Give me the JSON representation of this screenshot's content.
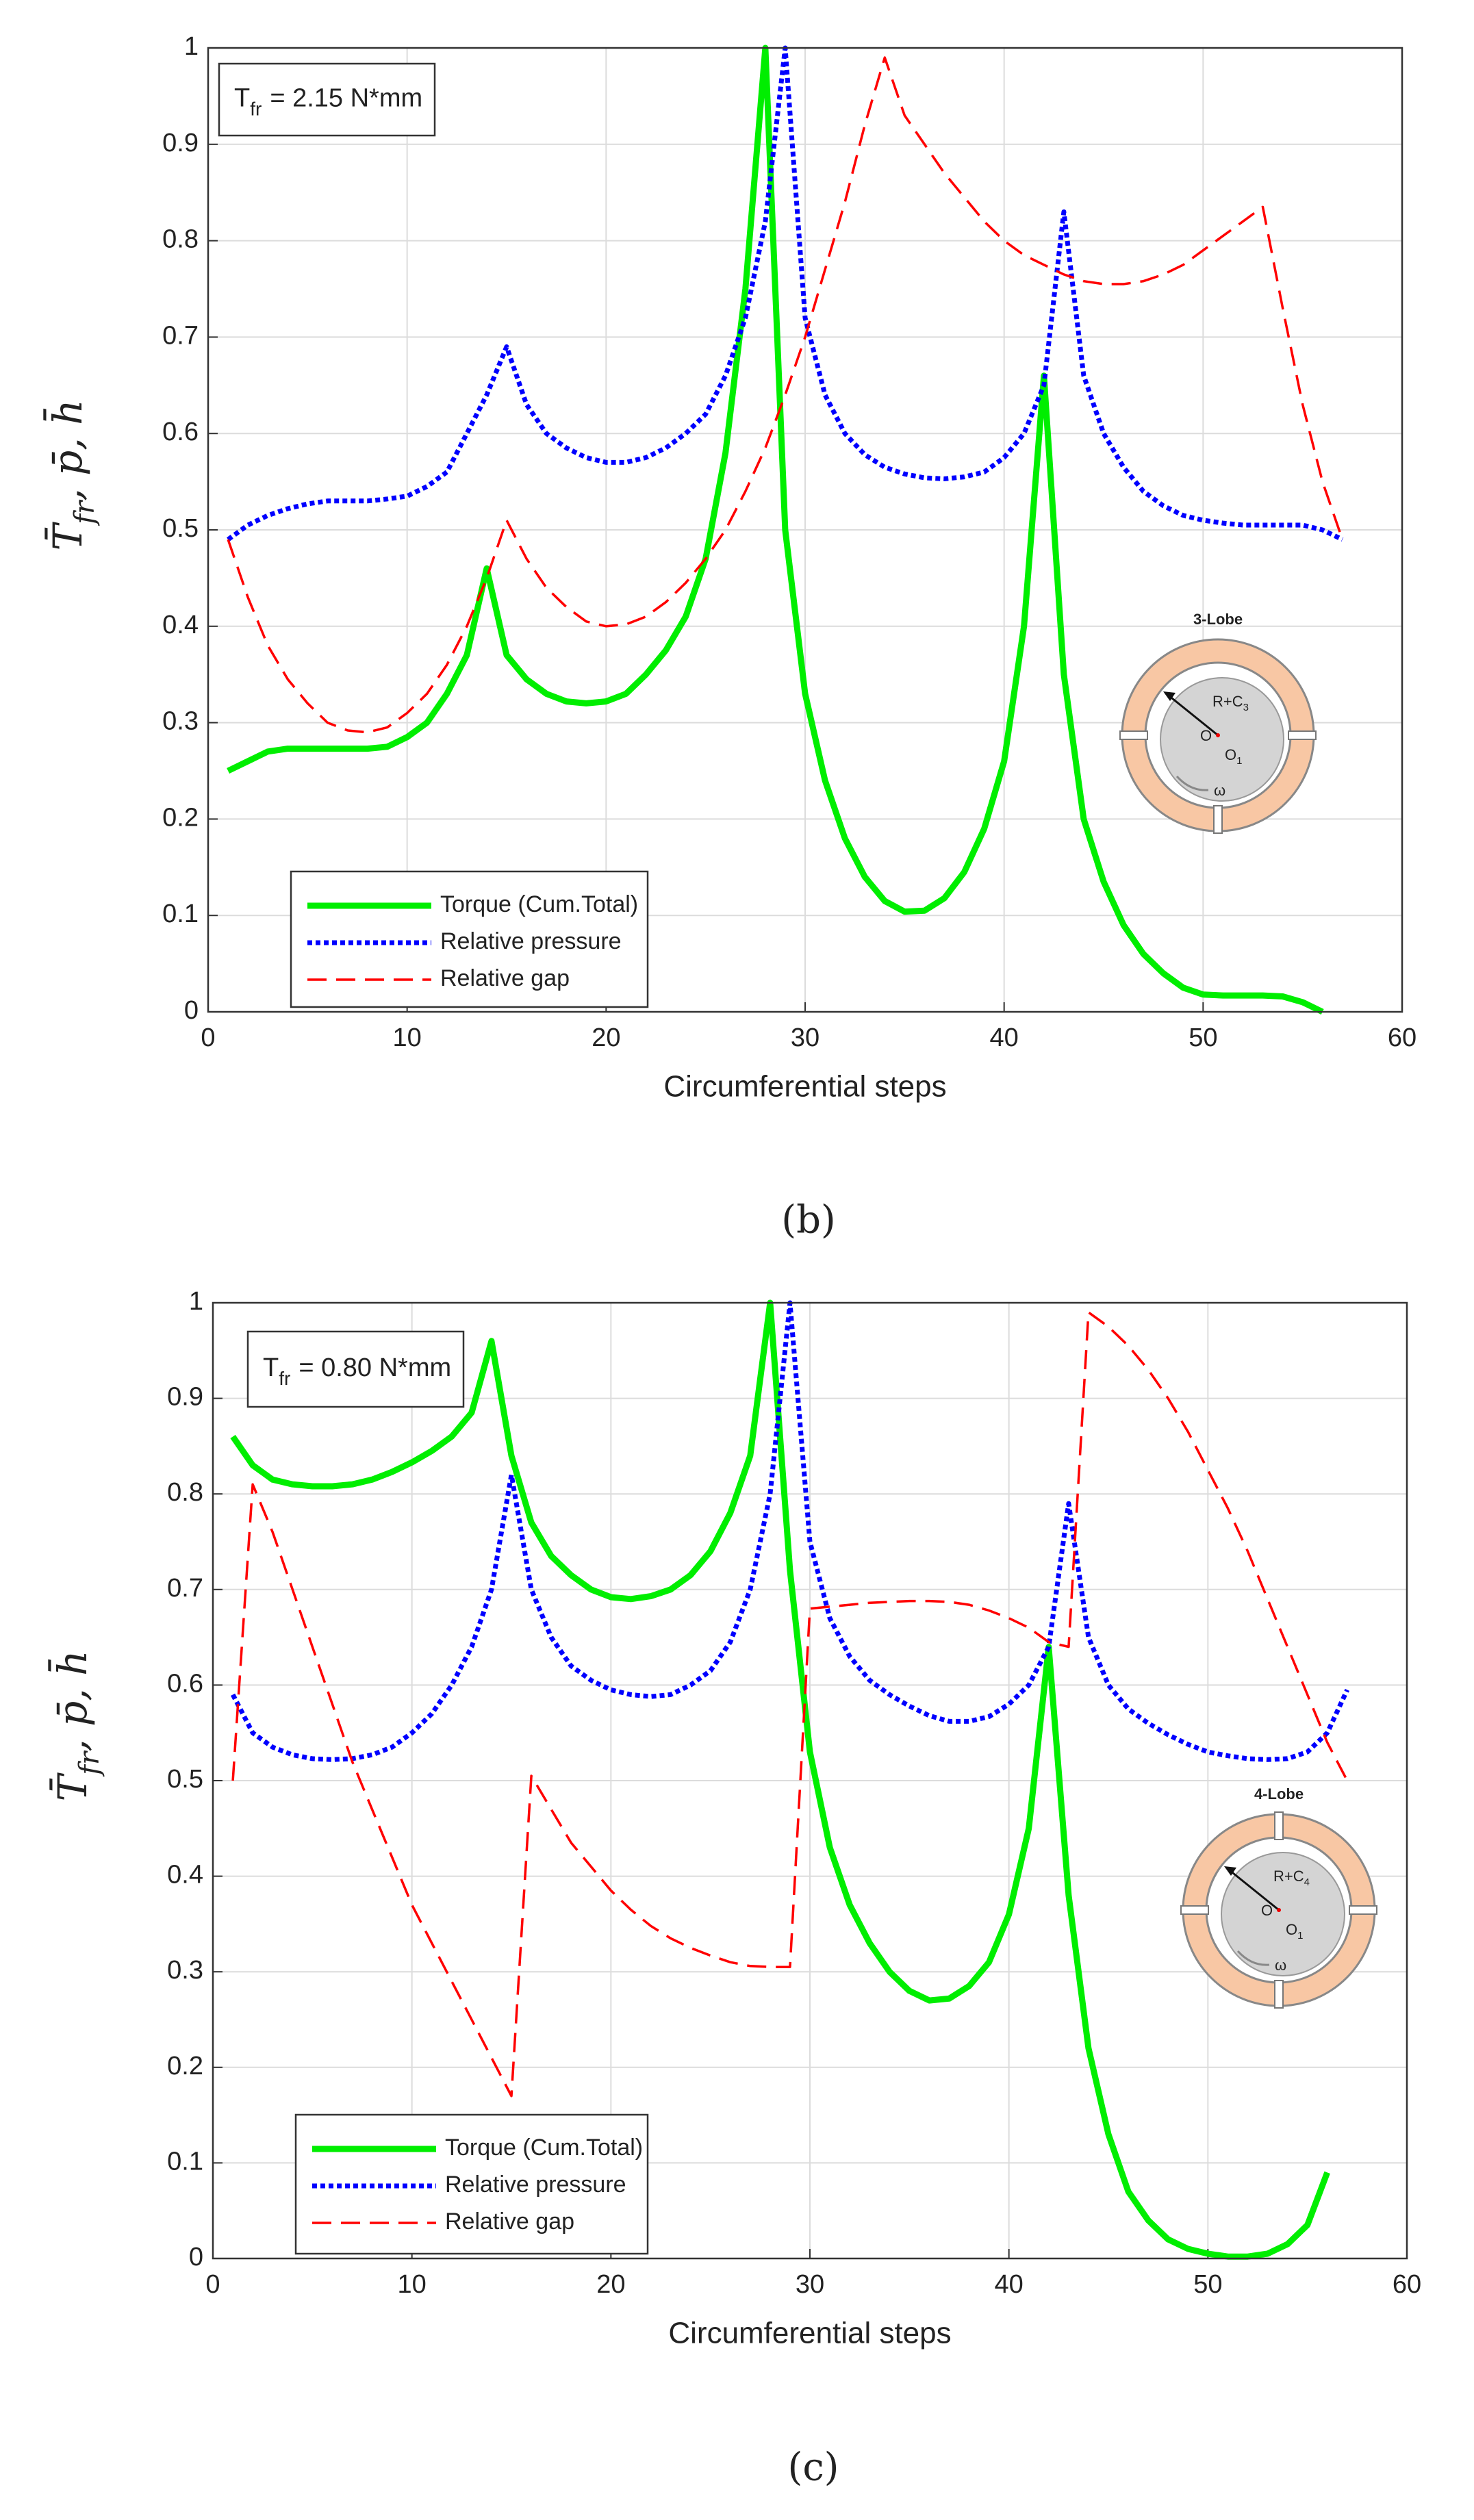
{
  "chart_data": [
    {
      "type": "line",
      "caption": "(b)",
      "xlabel": "Circumferential steps",
      "ylabel": [
        {
          "text": "T̄"
        },
        {
          "sub": "fr"
        },
        {
          "text": ", p̄, h̄"
        }
      ],
      "annotation": {
        "symbol": "T",
        "sub": "fr",
        "text": "= 2.15  N*mm"
      },
      "inset": {
        "title": "3-Lobe",
        "lobes": 3,
        "radius_label": "R+C",
        "radius_sub": "3",
        "center": "O",
        "offset": "O",
        "offset_sub": "1",
        "rotation": "ω"
      },
      "x": [
        1,
        2,
        3,
        4,
        5,
        6,
        7,
        8,
        9,
        10,
        11,
        12,
        13,
        14,
        15,
        16,
        17,
        18,
        19,
        20,
        21,
        22,
        23,
        24,
        25,
        26,
        27,
        28,
        29,
        30,
        31,
        32,
        33,
        34,
        35,
        36,
        37,
        38,
        39,
        40,
        41,
        42,
        43,
        44,
        45,
        46,
        47,
        48,
        49,
        50,
        51,
        52,
        53,
        54,
        55,
        56,
        57
      ],
      "series": [
        {
          "name": "Torque (Cum.Total)",
          "color": "#00ee00",
          "style": "solid",
          "values": [
            0.25,
            0.26,
            0.27,
            0.273,
            0.273,
            0.273,
            0.273,
            0.273,
            0.275,
            0.285,
            0.3,
            0.33,
            0.37,
            0.46,
            0.37,
            0.345,
            0.33,
            0.322,
            0.32,
            0.322,
            0.33,
            0.35,
            0.375,
            0.41,
            0.47,
            0.58,
            0.75,
            1.0,
            0.5,
            0.33,
            0.24,
            0.18,
            0.14,
            0.115,
            0.104,
            0.105,
            0.118,
            0.145,
            0.19,
            0.26,
            0.4,
            0.66,
            0.35,
            0.2,
            0.135,
            0.09,
            0.06,
            0.04,
            0.025,
            0.018,
            0.017,
            0.017,
            0.017,
            0.016,
            0.01,
            0,
            null
          ]
        },
        {
          "name": "Relative pressure",
          "color": "#0000ff",
          "style": "dotted",
          "values": [
            0.49,
            0.505,
            0.515,
            0.522,
            0.527,
            0.53,
            0.53,
            0.53,
            0.532,
            0.535,
            0.545,
            0.56,
            0.6,
            0.64,
            0.69,
            0.63,
            0.6,
            0.585,
            0.575,
            0.57,
            0.57,
            0.575,
            0.585,
            0.6,
            0.62,
            0.66,
            0.72,
            0.82,
            1.0,
            0.72,
            0.64,
            0.6,
            0.578,
            0.565,
            0.558,
            0.554,
            0.553,
            0.555,
            0.56,
            0.575,
            0.6,
            0.65,
            0.83,
            0.66,
            0.6,
            0.565,
            0.54,
            0.525,
            0.515,
            0.51,
            0.507,
            0.505,
            0.505,
            0.505,
            0.505,
            0.5,
            0.49
          ]
        },
        {
          "name": "Relative gap",
          "color": "#ff0000",
          "style": "dashed",
          "values": [
            0.49,
            0.43,
            0.38,
            0.345,
            0.32,
            0.3,
            0.292,
            0.29,
            0.295,
            0.31,
            0.33,
            0.36,
            0.4,
            0.45,
            0.51,
            0.47,
            0.44,
            0.42,
            0.405,
            0.4,
            0.402,
            0.41,
            0.425,
            0.445,
            0.47,
            0.5,
            0.54,
            0.585,
            0.64,
            0.7,
            0.77,
            0.84,
            0.92,
            0.99,
            0.93,
            0.9,
            0.87,
            0.845,
            0.82,
            0.8,
            0.785,
            0.775,
            0.765,
            0.758,
            0.755,
            0.755,
            0.758,
            0.765,
            0.775,
            0.79,
            0.805,
            0.82,
            0.835,
            0.73,
            0.63,
            0.55,
            0.49
          ]
        }
      ],
      "xlim": [
        0,
        60
      ],
      "xticks": [
        0,
        10,
        20,
        30,
        40,
        50,
        60
      ],
      "ylim": [
        0,
        1
      ],
      "yticks": [
        0,
        0.1,
        0.2,
        0.3,
        0.4,
        0.5,
        0.6,
        0.7,
        0.8,
        0.9,
        1
      ],
      "grid": true,
      "legend": "lower left"
    },
    {
      "type": "line",
      "caption": "(c)",
      "xlabel": "Circumferential steps",
      "ylabel": [
        {
          "text": "T̄"
        },
        {
          "sub": "fr"
        },
        {
          "text": ", p̄, h̄"
        }
      ],
      "annotation": {
        "symbol": "T",
        "sub": "fr",
        "text": "= 0.80  N*mm"
      },
      "inset": {
        "title": "4-Lobe",
        "lobes": 4,
        "radius_label": "R+C",
        "radius_sub": "4",
        "center": "O",
        "offset": "O",
        "offset_sub": "1",
        "rotation": "ω"
      },
      "x": [
        1,
        2,
        3,
        4,
        5,
        6,
        7,
        8,
        9,
        10,
        11,
        12,
        13,
        14,
        15,
        16,
        17,
        18,
        19,
        20,
        21,
        22,
        23,
        24,
        25,
        26,
        27,
        28,
        29,
        30,
        31,
        32,
        33,
        34,
        35,
        36,
        37,
        38,
        39,
        40,
        41,
        42,
        43,
        44,
        45,
        46,
        47,
        48,
        49,
        50,
        51,
        52,
        53,
        54,
        55,
        56,
        57
      ],
      "series": [
        {
          "name": "Torque (Cum.Total)",
          "color": "#00ee00",
          "style": "solid",
          "values": [
            0.86,
            0.83,
            0.815,
            0.81,
            0.808,
            0.808,
            0.81,
            0.815,
            0.823,
            0.833,
            0.845,
            0.86,
            0.885,
            0.96,
            0.84,
            0.77,
            0.735,
            0.715,
            0.7,
            0.692,
            0.69,
            0.693,
            0.7,
            0.715,
            0.74,
            0.78,
            0.84,
            1.0,
            0.72,
            0.53,
            0.43,
            0.37,
            0.33,
            0.3,
            0.28,
            0.27,
            0.272,
            0.285,
            0.31,
            0.36,
            0.45,
            0.64,
            0.38,
            0.22,
            0.13,
            0.07,
            0.04,
            0.02,
            0.01,
            0.005,
            0.002,
            0.002,
            0.005,
            0.015,
            0.035,
            0.09,
            null
          ]
        },
        {
          "name": "Relative pressure",
          "color": "#0000ff",
          "style": "dotted",
          "values": [
            0.59,
            0.55,
            0.535,
            0.527,
            0.523,
            0.522,
            0.523,
            0.527,
            0.535,
            0.55,
            0.57,
            0.6,
            0.64,
            0.7,
            0.82,
            0.7,
            0.65,
            0.62,
            0.605,
            0.595,
            0.59,
            0.588,
            0.59,
            0.6,
            0.615,
            0.645,
            0.7,
            0.8,
            1.0,
            0.75,
            0.67,
            0.63,
            0.605,
            0.59,
            0.578,
            0.568,
            0.562,
            0.562,
            0.567,
            0.58,
            0.6,
            0.64,
            0.79,
            0.65,
            0.6,
            0.575,
            0.56,
            0.548,
            0.538,
            0.53,
            0.526,
            0.523,
            0.522,
            0.523,
            0.53,
            0.55,
            0.595
          ]
        },
        {
          "name": "Relative gap",
          "color": "#ff0000",
          "style": "dashed",
          "values": [
            0.5,
            0.81,
            0.76,
            0.7,
            0.64,
            0.58,
            0.52,
            0.47,
            0.42,
            0.37,
            0.33,
            0.29,
            0.25,
            0.21,
            0.17,
            0.505,
            0.47,
            0.435,
            0.41,
            0.385,
            0.365,
            0.348,
            0.335,
            0.325,
            0.317,
            0.31,
            0.306,
            0.305,
            0.305,
            0.68,
            0.682,
            0.684,
            0.686,
            0.687,
            0.688,
            0.688,
            0.687,
            0.684,
            0.678,
            0.67,
            0.66,
            0.645,
            0.64,
            0.99,
            0.975,
            0.955,
            0.93,
            0.9,
            0.865,
            0.825,
            0.785,
            0.74,
            0.69,
            0.64,
            0.59,
            0.54,
            0.5
          ]
        }
      ],
      "xlim": [
        0,
        60
      ],
      "xticks": [
        0,
        10,
        20,
        30,
        40,
        50,
        60
      ],
      "ylim": [
        0,
        1
      ],
      "yticks": [
        0,
        0.1,
        0.2,
        0.3,
        0.4,
        0.5,
        0.6,
        0.7,
        0.8,
        0.9,
        1
      ],
      "grid": true,
      "legend": "lower left"
    }
  ]
}
